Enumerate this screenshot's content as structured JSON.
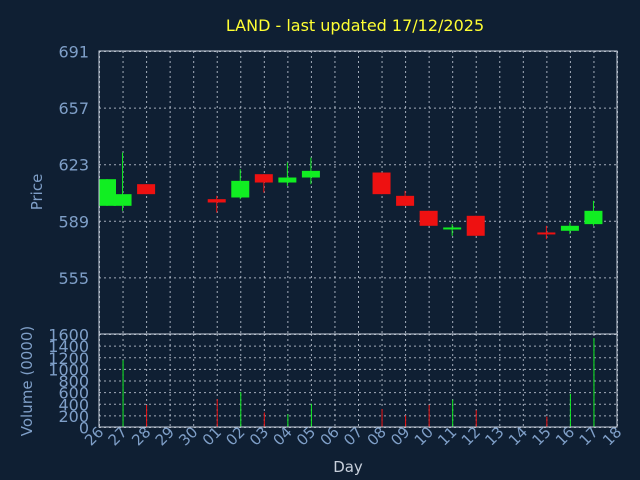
{
  "chart_data": {
    "type": "candlestick",
    "title": "LAND - last updated 17/12/2025",
    "ylabel": "Price",
    "volume_label": "Volume (0000)",
    "xlabel": "Day",
    "price_ticks": [
      555,
      589,
      623,
      657,
      691
    ],
    "price_ylim": [
      521,
      691
    ],
    "volume_ticks": [
      0,
      200,
      400,
      600,
      800,
      1000,
      1200,
      1400,
      1600
    ],
    "volume_ylim": [
      0,
      1600
    ],
    "x_labels": [
      "26",
      "27",
      "28",
      "29",
      "30",
      "01",
      "02",
      "03",
      "04",
      "05",
      "06",
      "07",
      "08",
      "09",
      "10",
      "11",
      "12",
      "13",
      "14",
      "15",
      "16",
      "17",
      "18"
    ],
    "colors": {
      "up": "#11ee22",
      "down": "#ee1111"
    },
    "candles": [
      {
        "x": 0,
        "open": 598,
        "high": 614,
        "low": 598,
        "close": 614,
        "volume": 0
      },
      {
        "x": 1,
        "open": 598,
        "high": 630,
        "low": 595,
        "close": 605,
        "volume": 1150
      },
      {
        "x": 2,
        "open": 611,
        "high": 611,
        "low": 605,
        "close": 605,
        "volume": 380
      },
      {
        "x": 5,
        "open": 602,
        "high": 604,
        "low": 594,
        "close": 600,
        "volume": 480
      },
      {
        "x": 6,
        "open": 603,
        "high": 620,
        "low": 602,
        "close": 613,
        "volume": 600
      },
      {
        "x": 7,
        "open": 617,
        "high": 617,
        "low": 606,
        "close": 612,
        "volume": 250
      },
      {
        "x": 8,
        "open": 612,
        "high": 624,
        "low": 610,
        "close": 615,
        "volume": 220
      },
      {
        "x": 9,
        "open": 615,
        "high": 627,
        "low": 611,
        "close": 619,
        "volume": 400
      },
      {
        "x": 12,
        "open": 618,
        "high": 618,
        "low": 605,
        "close": 605,
        "volume": 310
      },
      {
        "x": 13,
        "open": 604,
        "high": 607,
        "low": 598,
        "close": 598,
        "volume": 200
      },
      {
        "x": 14,
        "open": 595,
        "high": 595,
        "low": 586,
        "close": 586,
        "volume": 380
      },
      {
        "x": 15,
        "open": 584,
        "high": 587,
        "low": 580,
        "close": 585,
        "volume": 470
      },
      {
        "x": 16,
        "open": 592,
        "high": 592,
        "low": 580,
        "close": 580,
        "volume": 290
      },
      {
        "x": 19,
        "open": 582,
        "high": 586,
        "low": 578,
        "close": 581,
        "volume": 180
      },
      {
        "x": 20,
        "open": 583,
        "high": 588,
        "low": 581,
        "close": 586,
        "volume": 570
      },
      {
        "x": 21,
        "open": 587,
        "high": 601,
        "low": 586,
        "close": 595,
        "volume": 1530
      }
    ]
  }
}
